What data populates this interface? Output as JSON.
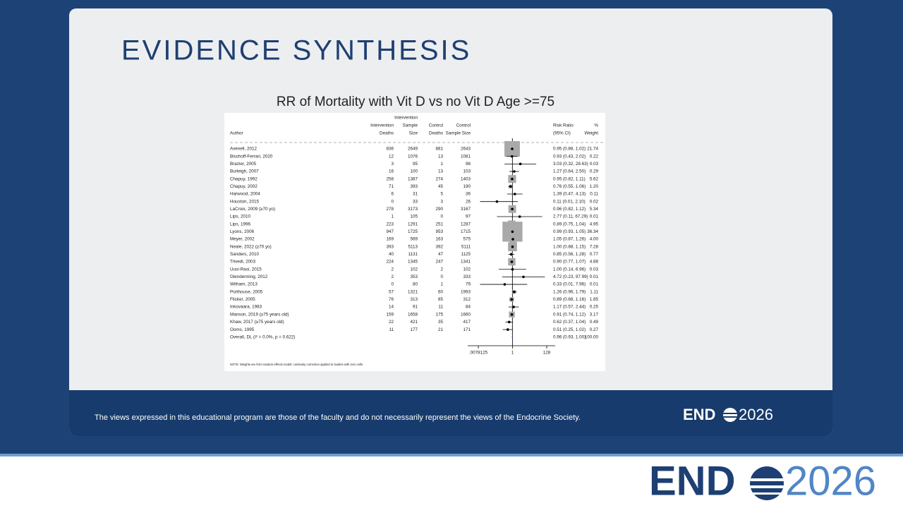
{
  "slide_title": "EVIDENCE SYNTHESIS",
  "disclaimer": "The views expressed in this educational program are those of the faculty and do not necessarily represent the views of the Endocrine Society.",
  "logo": {
    "prefix": "END",
    "suffix": "2026"
  },
  "chart_data": {
    "type": "forest",
    "title": "RR of Mortality with Vit D vs no Vit D Age >=75",
    "headers": {
      "author": "Author",
      "int_deaths": [
        "Intervention",
        "Deaths"
      ],
      "int_size": [
        "Intervention",
        "Sample",
        "Size"
      ],
      "ctrl_deaths": [
        "Control",
        "Deaths"
      ],
      "ctrl_size": [
        "Control",
        "Sample Size"
      ],
      "ci": [
        "Risk Ratio",
        "(95% CI)"
      ],
      "weight": [
        "%",
        "Weight"
      ]
    },
    "studies": [
      "Avenell, 2012",
      "Bischoff-Ferrari, 2020",
      "Brazier, 2005",
      "Burleigh, 2007",
      "Chapuy, 1992",
      "Chapuy, 2002",
      "Harwood, 2004",
      "Houston, 2015",
      "LaCroix, 2009 (≥70 yo)",
      "Lips, 2010",
      "Lips, 1996",
      "Lyons, 2006",
      "Meyer, 2002",
      "Neale, 2022 (≥70 yo)",
      "Sanders, 2010",
      "Trivedi, 2003",
      "Uusi-Rasi, 2015",
      "Glendenning, 2012",
      "Witham, 2013",
      "Porthouse, 2005",
      "Flicker, 2005",
      "Inkovaara, 1983",
      "Manson, 2019 (≥75 years old)",
      "Khaw, 2017 (≥75 years old)",
      "Ooms, 1995"
    ],
    "int_deaths": [
      836,
      12,
      3,
      16,
      258,
      71,
      6,
      0,
      278,
      1,
      223,
      947,
      169,
      393,
      40,
      224,
      2,
      2,
      0,
      57,
      76,
      14,
      159,
      22,
      11
    ],
    "int_size": [
      2649,
      1076,
      95,
      100,
      1387,
      393,
      31,
      33,
      3173,
      105,
      1291,
      1725,
      569,
      5113,
      1131,
      1345,
      102,
      353,
      80,
      1321,
      313,
      91,
      1658,
      421,
      177
    ],
    "ctrl_deaths": [
      881,
      13,
      1,
      13,
      274,
      45,
      5,
      3,
      290,
      0,
      251,
      953,
      163,
      392,
      47,
      247,
      2,
      0,
      1,
      60,
      85,
      11,
      175,
      35,
      21
    ],
    "ctrl_size": [
      2643,
      1081,
      96,
      103,
      1403,
      190,
      36,
      26,
      3167,
      97,
      1287,
      1715,
      575,
      5111,
      1125,
      1341,
      102,
      333,
      79,
      1993,
      312,
      84,
      1660,
      417,
      171
    ],
    "rr": [
      0.95,
      0.93,
      3.03,
      1.27,
      0.95,
      0.76,
      1.39,
      0.11,
      0.96,
      2.77,
      0.89,
      0.99,
      1.05,
      1.0,
      0.85,
      0.9,
      1.0,
      4.72,
      0.33,
      1.26,
      0.89,
      1.17,
      0.91,
      0.62,
      0.51
    ],
    "ci_low": [
      0.88,
      0.43,
      0.32,
      0.64,
      0.82,
      0.55,
      0.47,
      0.01,
      0.82,
      0.11,
      0.75,
      0.93,
      0.87,
      0.88,
      0.56,
      0.77,
      0.14,
      0.23,
      0.01,
      0.96,
      0.68,
      0.57,
      0.74,
      0.37,
      0.25
    ],
    "ci_high": [
      1.02,
      2.02,
      28.63,
      2.5,
      1.11,
      1.06,
      4.13,
      2.1,
      1.12,
      67.29,
      1.04,
      1.05,
      1.26,
      1.15,
      1.28,
      1.07,
      6.96,
      97.99,
      7.96,
      1.79,
      1.16,
      2.44,
      1.12,
      1.04,
      1.02
    ],
    "ci_labels": [
      "0.95 (0.88, 1.02)",
      "0.93 (0.43, 2.02)",
      "3.03 (0.32, 28.63)",
      "1.27 (0.64, 2.50)",
      "0.95 (0.82, 1.11)",
      "0.76 (0.55, 1.06)",
      "1.39 (0.47, 4.13)",
      "0.11 (0.01, 2.10)",
      "0.96 (0.82, 1.12)",
      "2.77 (0.11, 67.29)",
      "0.89 (0.75, 1.04)",
      "0.99 (0.93, 1.05)",
      "1.05 (0.87, 1.26)",
      "1.00 (0.88, 1.15)",
      "0.85 (0.56, 1.28)",
      "0.90 (0.77, 1.07)",
      "1.00 (0.14, 6.96)",
      "4.72 (0.23, 97.99)",
      "0.33 (0.01, 7.96)",
      "1.26 (0.96, 1.79)",
      "0.89 (0.68, 1.16)",
      "1.17 (0.57, 2.44)",
      "0.91 (0.74, 1.12)",
      "0.62 (0.37, 1.04)",
      "0.51 (0.25, 1.02)"
    ],
    "weights": [
      21.74,
      0.22,
      0.03,
      0.29,
      5.62,
      1.2,
      0.11,
      0.02,
      5.34,
      0.01,
      4.95,
      36.34,
      4.0,
      7.28,
      0.77,
      4.88,
      0.03,
      0.01,
      0.01,
      1.11,
      1.85,
      0.25,
      3.17,
      0.49,
      0.27
    ],
    "weight_labels": [
      "21.74",
      "0.22",
      "0.03",
      "0.29",
      "5.62",
      "1.20",
      "0.11",
      "0.02",
      "5.34",
      "0.01",
      "4.95",
      "36.34",
      "4.00",
      "7.28",
      "0.77",
      "4.88",
      "0.03",
      "0.01",
      "0.01",
      "1.11",
      "1.85",
      "0.25",
      "3.17",
      "0.49",
      "0.27"
    ],
    "overall": {
      "label": "Overall, DL (I² = 0.0%, p = 0.622)",
      "rr": 0.96,
      "ci_low": 0.93,
      "ci_high": 1.0,
      "ci_label": "0.96 (0.93, 1.00)",
      "weight": 100,
      "weight_label": "100.00"
    },
    "log_x": true,
    "xlim": [
      0.0078125,
      128
    ],
    "xticks": [
      {
        "value": 0.0078125,
        "label": ".0078125"
      },
      1,
      128
    ],
    "note": "NOTE: Weights are from random-effects model; continuity correction applied to studies with zero cells"
  }
}
